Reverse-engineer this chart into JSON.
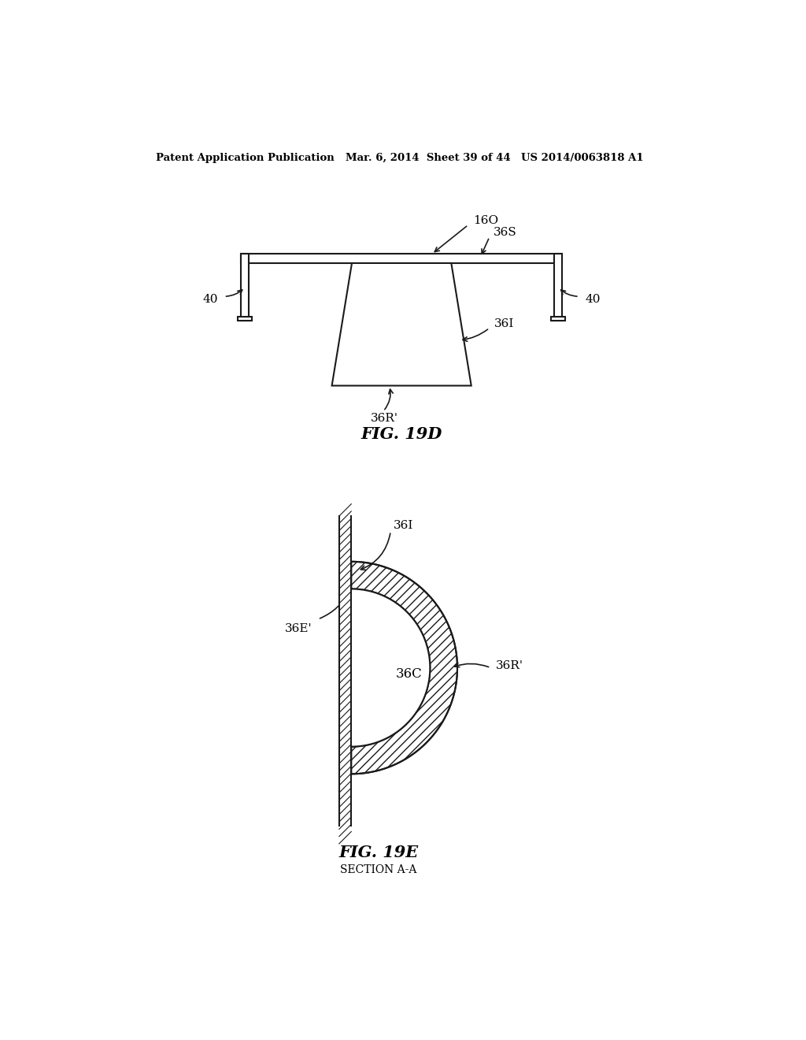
{
  "header_left": "Patent Application Publication",
  "header_mid": "Mar. 6, 2014  Sheet 39 of 44",
  "header_right": "US 2014/0063818 A1",
  "fig1_title": "FIG. 19D",
  "fig2_title": "FIG. 19E",
  "fig2_subtitle": "SECTION A-A",
  "bg_color": "#ffffff",
  "line_color": "#1a1a1a"
}
